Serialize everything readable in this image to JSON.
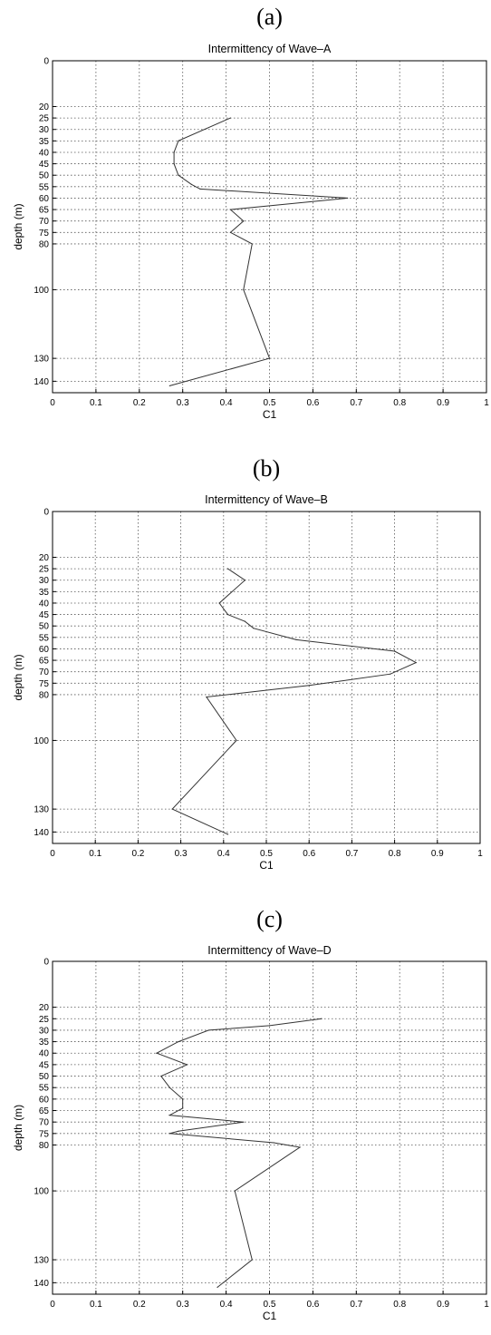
{
  "chart_data": [
    {
      "type": "line",
      "panel_label": "(a)",
      "title": "Intermittency of Wave–A",
      "xlabel": "C1",
      "ylabel": "depth (m)",
      "xlim": [
        0,
        1
      ],
      "ylim": [
        0,
        145
      ],
      "y_inverted": true,
      "grid": true,
      "x_ticks": [
        0,
        0.1,
        0.2,
        0.3,
        0.4,
        0.5,
        0.6,
        0.7,
        0.8,
        0.9,
        1
      ],
      "x_tick_labels": [
        "0",
        "0.1",
        "0.2",
        "0.3",
        "0.4",
        "0.5",
        "0.6",
        "0.7",
        "0.8",
        "0.9",
        "1"
      ],
      "y_ticks": [
        0,
        20,
        25,
        30,
        35,
        40,
        45,
        50,
        55,
        60,
        65,
        70,
        75,
        80,
        100,
        130,
        140
      ],
      "y_tick_labels": [
        "0",
        "20",
        "25",
        "30",
        "35",
        "40",
        "45",
        "50",
        "55",
        "60",
        "65",
        "70",
        "75",
        "80",
        "100",
        "130",
        "140"
      ],
      "series": [
        {
          "x": [
            0.41,
            0.29,
            0.28,
            0.28,
            0.29,
            0.32,
            0.34,
            0.68,
            0.41,
            0.44,
            0.41,
            0.46,
            0.44,
            0.5,
            0.27
          ],
          "y": [
            25,
            35,
            40,
            45,
            50,
            54,
            56,
            60,
            65,
            70,
            75,
            80,
            100,
            130,
            142
          ]
        }
      ]
    },
    {
      "type": "line",
      "panel_label": "(b)",
      "title": "Intermittency of Wave–B",
      "xlabel": "C1",
      "ylabel": "depth (m)",
      "xlim": [
        0,
        1
      ],
      "ylim": [
        0,
        145
      ],
      "y_inverted": true,
      "grid": true,
      "x_ticks": [
        0,
        0.1,
        0.2,
        0.3,
        0.4,
        0.5,
        0.6,
        0.7,
        0.8,
        0.9,
        1
      ],
      "x_tick_labels": [
        "0",
        "0.1",
        "0.2",
        "0.3",
        "0.4",
        "0.5",
        "0.6",
        "0.7",
        "0.8",
        "0.9",
        "1"
      ],
      "y_ticks": [
        0,
        20,
        25,
        30,
        35,
        40,
        45,
        50,
        55,
        60,
        65,
        70,
        75,
        80,
        100,
        130,
        140
      ],
      "y_tick_labels": [
        "0",
        "20",
        "25",
        "30",
        "35",
        "40",
        "45",
        "50",
        "55",
        "60",
        "65",
        "70",
        "75",
        "80",
        "100",
        "130",
        "140"
      ],
      "series": [
        {
          "x": [
            0.41,
            0.45,
            0.39,
            0.41,
            0.45,
            0.47,
            0.57,
            0.8,
            0.85,
            0.79,
            0.6,
            0.36,
            0.43,
            0.28,
            0.41
          ],
          "y": [
            25,
            30,
            40,
            45,
            48,
            51,
            56,
            61,
            66,
            71,
            76,
            81,
            100,
            130,
            141
          ]
        }
      ]
    },
    {
      "type": "line",
      "panel_label": "(c)",
      "title": "Intermittency of Wave–D",
      "xlabel": "C1",
      "ylabel": "depth (m)",
      "xlim": [
        0,
        1
      ],
      "ylim": [
        0,
        145
      ],
      "y_inverted": true,
      "grid": true,
      "x_ticks": [
        0,
        0.1,
        0.2,
        0.3,
        0.4,
        0.5,
        0.6,
        0.7,
        0.8,
        0.9,
        1
      ],
      "x_tick_labels": [
        "0",
        "0.1",
        "0.2",
        "0.3",
        "0.4",
        "0.5",
        "0.6",
        "0.7",
        "0.8",
        "0.9",
        "1"
      ],
      "y_ticks": [
        0,
        20,
        25,
        30,
        35,
        40,
        45,
        50,
        55,
        60,
        65,
        70,
        75,
        80,
        100,
        130,
        140
      ],
      "y_tick_labels": [
        "0",
        "20",
        "25",
        "30",
        "35",
        "40",
        "45",
        "50",
        "55",
        "60",
        "65",
        "70",
        "75",
        "80",
        "100",
        "130",
        "140"
      ],
      "series": [
        {
          "x": [
            0.62,
            0.5,
            0.36,
            0.29,
            0.24,
            0.31,
            0.25,
            0.27,
            0.3,
            0.3,
            0.27,
            0.44,
            0.29,
            0.27,
            0.51,
            0.57,
            0.42,
            0.46,
            0.38
          ],
          "y": [
            25,
            28,
            30,
            35,
            40,
            45,
            50,
            55,
            60,
            64,
            67,
            70,
            74,
            75,
            79,
            81,
            100,
            130,
            142
          ]
        }
      ]
    }
  ]
}
